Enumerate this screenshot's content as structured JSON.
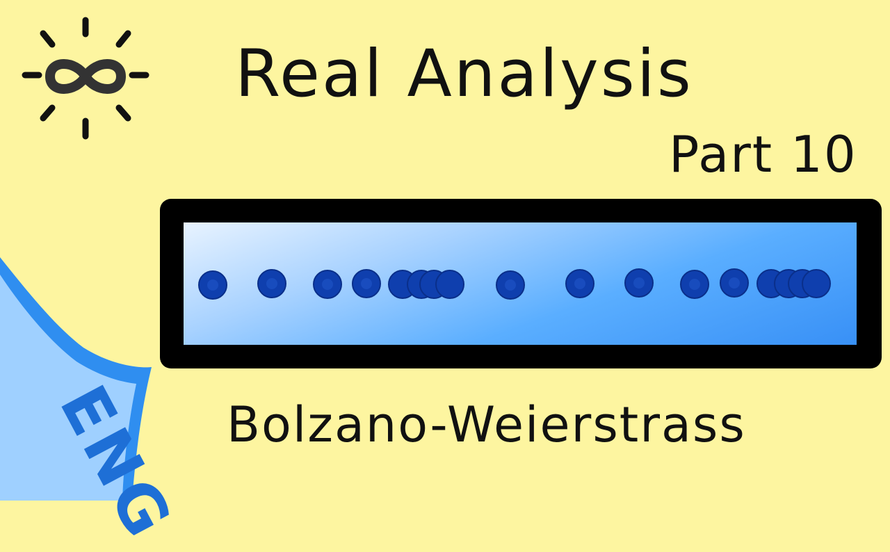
{
  "header": {
    "title": "Real Analysis",
    "part": "Part 10"
  },
  "topic": "Bolzano-Weierstrass",
  "language_badge": "ENG",
  "logo": {
    "icon": "infinity-sun-icon"
  },
  "colors": {
    "background": "#fdf5a0",
    "frame": "#000000",
    "dots": "#0f3fae",
    "corner_accent": "#2f8ef0",
    "corner_light": "#9fd0ff",
    "text": "#111111"
  },
  "sequence": {
    "dot_count": 16
  }
}
